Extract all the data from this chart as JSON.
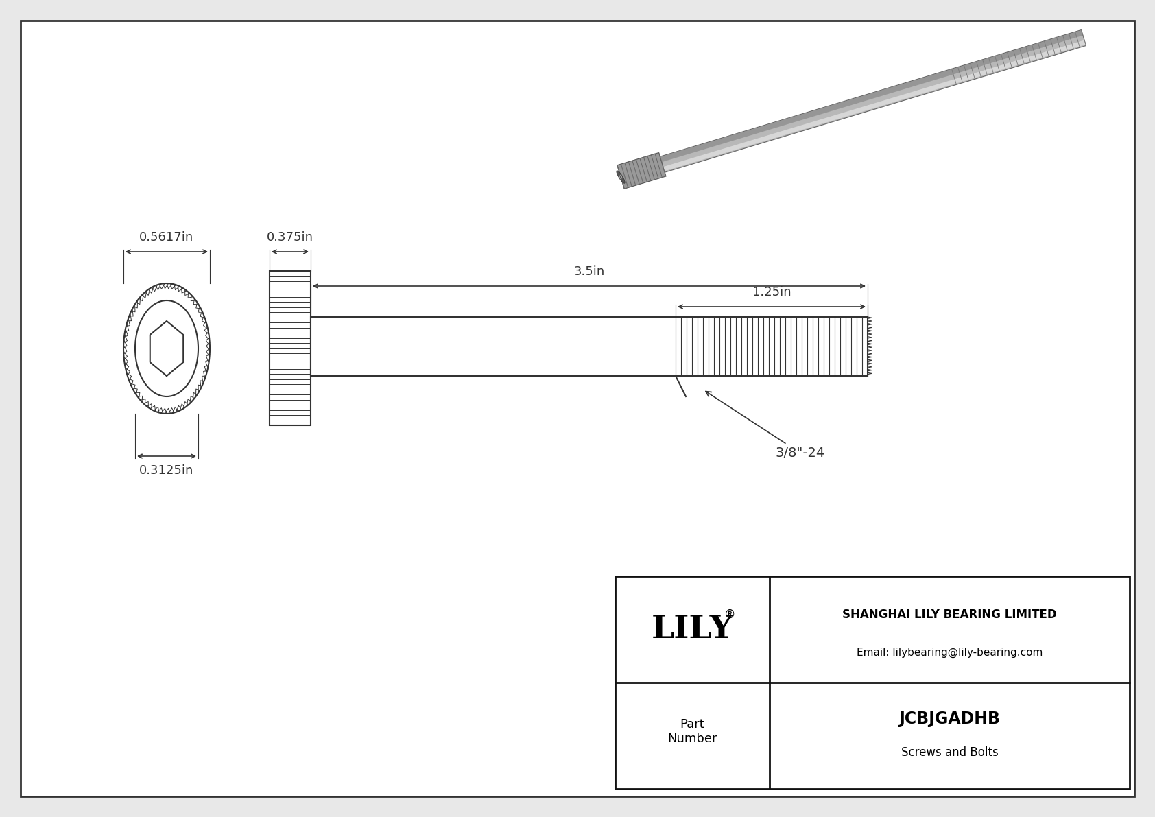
{
  "bg_color": "#e8e8e8",
  "drawing_bg": "#ffffff",
  "border_color": "#555555",
  "line_color": "#333333",
  "dim_color": "#333333",
  "title": "JCBJGADHB",
  "subtitle": "Screws and Bolts",
  "company": "SHANGHAI LILY BEARING LIMITED",
  "email": "Email: lilybearing@lily-bearing.com",
  "brand": "LILY",
  "part_label": "Part\nNumber",
  "dim_head_diameter": "0.5617in",
  "dim_shaft_diameter": "0.375in",
  "dim_total_length": "3.5in",
  "dim_thread_length": "1.25in",
  "dim_bore_diameter": "0.3125in",
  "dim_thread_label": "3/8\"-24"
}
